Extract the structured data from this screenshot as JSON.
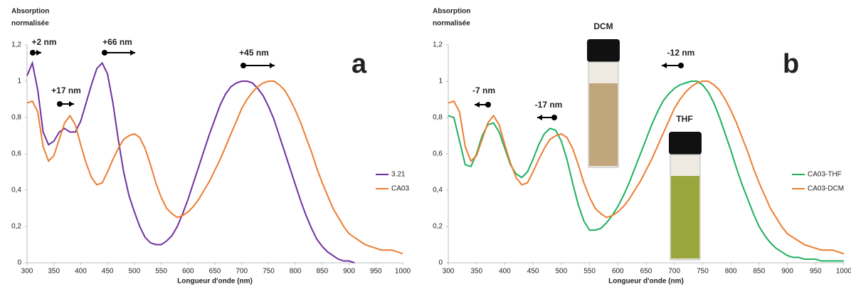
{
  "chart_data": [
    {
      "type": "line",
      "panel_label": "a",
      "ylabel": [
        "Absorption",
        "normalisée"
      ],
      "xlabel": "Longueur d'onde (nm)",
      "x": [
        300,
        310,
        320,
        330,
        340,
        350,
        360,
        370,
        380,
        390,
        400,
        410,
        420,
        430,
        440,
        450,
        460,
        470,
        480,
        490,
        500,
        510,
        520,
        530,
        540,
        550,
        560,
        570,
        580,
        590,
        600,
        610,
        620,
        630,
        640,
        650,
        660,
        670,
        680,
        690,
        700,
        710,
        720,
        730,
        740,
        750,
        760,
        770,
        780,
        790,
        800,
        810,
        820,
        830,
        840,
        850,
        860,
        870,
        880,
        890,
        900,
        910,
        920,
        930,
        940,
        950,
        960,
        970,
        980,
        990,
        1000
      ],
      "xlim": [
        300,
        1000
      ],
      "xticks": [
        300,
        350,
        400,
        450,
        500,
        550,
        600,
        650,
        700,
        750,
        800,
        850,
        900,
        950,
        1000
      ],
      "ylim": [
        0,
        1.2
      ],
      "yticks": [
        0,
        {
          "value": 0.2,
          "label": "0,2"
        },
        {
          "value": 0.4,
          "label": "0,4"
        },
        {
          "value": 0.6,
          "label": "0,6"
        },
        {
          "value": 0.8,
          "label": "0,8"
        },
        1,
        {
          "value": 1.2,
          "label": "1,2"
        }
      ],
      "grid": false,
      "legend": "right",
      "series": [
        {
          "name": "3.21",
          "color": "#7030a0",
          "values": [
            1.03,
            1.1,
            0.95,
            0.72,
            0.65,
            0.67,
            0.72,
            0.74,
            0.72,
            0.72,
            0.78,
            0.88,
            0.98,
            1.07,
            1.1,
            1.04,
            0.88,
            0.68,
            0.5,
            0.37,
            0.28,
            0.2,
            0.14,
            0.11,
            0.1,
            0.1,
            0.12,
            0.15,
            0.2,
            0.27,
            0.35,
            0.44,
            0.53,
            0.62,
            0.71,
            0.79,
            0.87,
            0.93,
            0.97,
            0.99,
            1.0,
            1.0,
            0.99,
            0.96,
            0.92,
            0.86,
            0.79,
            0.7,
            0.61,
            0.52,
            0.43,
            0.34,
            0.26,
            0.19,
            0.13,
            0.09,
            0.06,
            0.04,
            0.02,
            0.01,
            0.01,
            0,
            null,
            null,
            null,
            null,
            null,
            null,
            null,
            null,
            null
          ]
        },
        {
          "name": "CA03",
          "color": "#ed7d31",
          "values": [
            0.88,
            0.89,
            0.83,
            0.64,
            0.56,
            0.59,
            0.68,
            0.77,
            0.81,
            0.76,
            0.65,
            0.55,
            0.47,
            0.43,
            0.44,
            0.5,
            0.57,
            0.63,
            0.68,
            0.7,
            0.71,
            0.69,
            0.63,
            0.54,
            0.44,
            0.36,
            0.3,
            0.27,
            0.25,
            0.26,
            0.28,
            0.31,
            0.35,
            0.4,
            0.45,
            0.51,
            0.57,
            0.64,
            0.71,
            0.78,
            0.85,
            0.9,
            0.94,
            0.97,
            0.99,
            1.0,
            1.0,
            0.98,
            0.95,
            0.9,
            0.84,
            0.77,
            0.69,
            0.61,
            0.52,
            0.44,
            0.37,
            0.3,
            0.25,
            0.2,
            0.16,
            0.14,
            0.12,
            0.1,
            0.09,
            0.08,
            0.07,
            0.07,
            0.07,
            0.06,
            0.05
          ]
        }
      ],
      "annotations": [
        "+2 nm",
        "+17 nm",
        "+66 nm",
        "+45 nm"
      ]
    },
    {
      "type": "line",
      "panel_label": "b",
      "ylabel": [
        "Absorption",
        "normalisée"
      ],
      "xlabel": "Longueur d'onde (nm)",
      "x": [
        300,
        310,
        320,
        330,
        340,
        350,
        360,
        370,
        380,
        390,
        400,
        410,
        420,
        430,
        440,
        450,
        460,
        470,
        480,
        490,
        500,
        510,
        520,
        530,
        540,
        550,
        560,
        570,
        580,
        590,
        600,
        610,
        620,
        630,
        640,
        650,
        660,
        670,
        680,
        690,
        700,
        710,
        720,
        730,
        740,
        750,
        760,
        770,
        780,
        790,
        800,
        810,
        820,
        830,
        840,
        850,
        860,
        870,
        880,
        890,
        900,
        910,
        920,
        930,
        940,
        950,
        960,
        970,
        980,
        990,
        1000
      ],
      "xlim": [
        300,
        1000
      ],
      "xticks": [
        300,
        350,
        400,
        450,
        500,
        550,
        600,
        650,
        700,
        750,
        800,
        850,
        900,
        950,
        1000
      ],
      "ylim": [
        0,
        1.2
      ],
      "yticks": [
        0,
        {
          "value": 0.2,
          "label": "0,2"
        },
        {
          "value": 0.4,
          "label": "0,4"
        },
        {
          "value": 0.6,
          "label": "0,6"
        },
        {
          "value": 0.8,
          "label": "0,8"
        },
        1,
        {
          "value": 1.2,
          "label": "1,2"
        }
      ],
      "grid": false,
      "legend": "right",
      "series": [
        {
          "name": "CA03-THF",
          "color": "#1db060",
          "values": [
            0.81,
            0.8,
            0.67,
            0.54,
            0.53,
            0.6,
            0.7,
            0.76,
            0.77,
            0.72,
            0.63,
            0.54,
            0.49,
            0.47,
            0.5,
            0.57,
            0.65,
            0.71,
            0.74,
            0.73,
            0.67,
            0.57,
            0.44,
            0.32,
            0.23,
            0.18,
            0.18,
            0.19,
            0.22,
            0.26,
            0.31,
            0.37,
            0.44,
            0.52,
            0.6,
            0.68,
            0.76,
            0.83,
            0.89,
            0.93,
            0.96,
            0.98,
            0.99,
            1.0,
            1.0,
            0.98,
            0.94,
            0.88,
            0.8,
            0.71,
            0.62,
            0.52,
            0.43,
            0.35,
            0.27,
            0.2,
            0.15,
            0.11,
            0.08,
            0.06,
            0.04,
            0.03,
            0.03,
            0.02,
            0.02,
            0.02,
            0.01,
            0.01,
            0.01,
            0.01,
            0.01
          ]
        },
        {
          "name": "CA03-DCM",
          "color": "#ed7d31",
          "values": [
            0.88,
            0.89,
            0.83,
            0.64,
            0.56,
            0.59,
            0.68,
            0.77,
            0.81,
            0.76,
            0.65,
            0.55,
            0.47,
            0.43,
            0.44,
            0.5,
            0.57,
            0.63,
            0.68,
            0.7,
            0.71,
            0.69,
            0.63,
            0.54,
            0.44,
            0.36,
            0.3,
            0.27,
            0.25,
            0.26,
            0.28,
            0.31,
            0.35,
            0.4,
            0.45,
            0.51,
            0.57,
            0.64,
            0.71,
            0.78,
            0.85,
            0.9,
            0.94,
            0.97,
            0.99,
            1.0,
            1.0,
            0.98,
            0.95,
            0.9,
            0.84,
            0.77,
            0.69,
            0.61,
            0.52,
            0.44,
            0.37,
            0.3,
            0.25,
            0.2,
            0.16,
            0.14,
            0.12,
            0.1,
            0.09,
            0.08,
            0.07,
            0.07,
            0.07,
            0.06,
            0.05
          ]
        }
      ],
      "annotations": [
        "-7 nm",
        "-17 nm",
        "-12 nm"
      ],
      "insets": [
        "DCM",
        "THF"
      ]
    }
  ]
}
